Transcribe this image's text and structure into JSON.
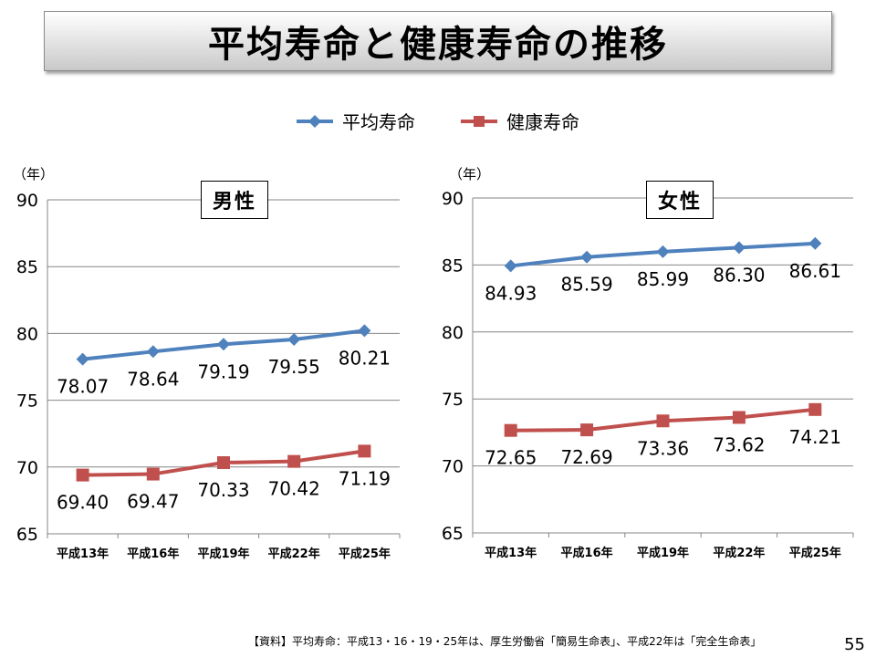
{
  "title": "平均寿命と健康寿命の推移",
  "legend": [
    {
      "label": "平均寿命",
      "color": "#4F81BD"
    },
    {
      "label": "健康寿命",
      "color": "#C0504D"
    }
  ],
  "footer": "【資料】平均寿命：平成13・16・19・25年は、厚生労働省「簡易生命表」、平成22年は「完全生命表」",
  "page_number": "55",
  "chart_data": [
    {
      "type": "line",
      "title": "男性",
      "ylabel": "（年）",
      "ylim": [
        65,
        90
      ],
      "yticks": [
        65,
        70,
        75,
        80,
        85,
        90
      ],
      "categories": [
        "平成13年",
        "平成16年",
        "平成19年",
        "平成22年",
        "平成25年"
      ],
      "grid": true,
      "series": [
        {
          "name": "平均寿命",
          "color": "#4F81BD",
          "marker": "diamond",
          "values": [
            78.07,
            78.64,
            79.19,
            79.55,
            80.21
          ]
        },
        {
          "name": "健康寿命",
          "color": "#C0504D",
          "marker": "square",
          "values": [
            69.4,
            69.47,
            70.33,
            70.42,
            71.19
          ]
        }
      ],
      "labels": [
        [
          "78.07",
          "78.64",
          "79.19",
          "79.55",
          "80.21"
        ],
        [
          "69.40",
          "69.47",
          "70.33",
          "70.42",
          "71.19"
        ]
      ]
    },
    {
      "type": "line",
      "title": "女性",
      "ylabel": "（年）",
      "ylim": [
        65,
        90
      ],
      "yticks": [
        65,
        70,
        75,
        80,
        85,
        90
      ],
      "categories": [
        "平成13年",
        "平成16年",
        "平成19年",
        "平成22年",
        "平成25年"
      ],
      "grid": true,
      "series": [
        {
          "name": "平均寿命",
          "color": "#4F81BD",
          "marker": "diamond",
          "values": [
            84.93,
            85.59,
            85.99,
            86.3,
            86.61
          ]
        },
        {
          "name": "健康寿命",
          "color": "#C0504D",
          "marker": "square",
          "values": [
            72.65,
            72.69,
            73.36,
            73.62,
            74.21
          ]
        }
      ],
      "labels": [
        [
          "84.93",
          "85.59",
          "85.99",
          "86.30",
          "86.61"
        ],
        [
          "72.65",
          "72.69",
          "73.36",
          "73.62",
          "74.21"
        ]
      ]
    }
  ]
}
